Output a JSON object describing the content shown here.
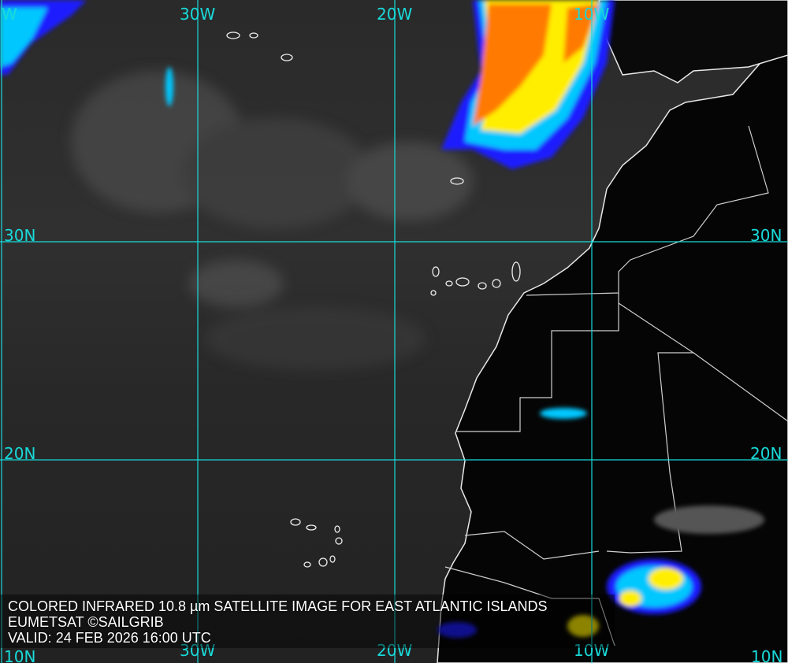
{
  "caption": {
    "title": "COLORED INFRARED 10.8 µm SATELLITE IMAGE FOR EAST ATLANTIC ISLANDS",
    "credit": "EUMETSAT ©SAILGRIB",
    "valid": "VALID:  24 FEB 2026 16:00 UTC"
  },
  "grid": {
    "top_labels": [
      "W",
      "30W",
      "20W",
      "10W"
    ],
    "bottom_labels": [
      "10N",
      "30W",
      "20W",
      "10W",
      "10N"
    ],
    "left_labels": [
      "30N",
      "20N"
    ],
    "right_labels": [
      "30N",
      "20N"
    ],
    "color": "#19d9d9"
  },
  "colors": {
    "coast": "#e8e8e8",
    "land": "#050505",
    "cloud_cold": "#ff7a00",
    "cloud_mid": "#ffee00",
    "cloud_cool": "#00c8ff",
    "cloud_edge": "#1a1aff"
  }
}
